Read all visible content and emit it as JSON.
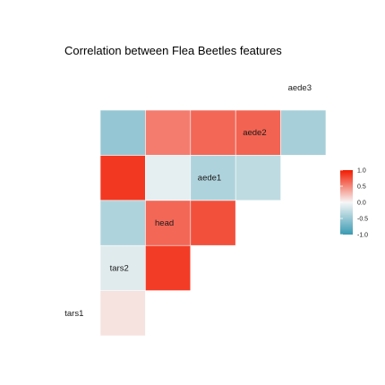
{
  "chart_data": {
    "type": "heatmap",
    "title": "Correlation between Flea Beetles features",
    "variables": [
      "tars1",
      "tars2",
      "head",
      "aede1",
      "aede2",
      "aede3"
    ],
    "values": [
      [
        1.0,
        0.0,
        0.0,
        0.0,
        0.0,
        0.0
      ],
      [
        0.06,
        1.0,
        0.0,
        0.0,
        0.0,
        0.0
      ],
      [
        -0.08,
        0.82,
        1.0,
        0.0,
        0.0,
        0.0
      ],
      [
        -0.32,
        0.6,
        0.72,
        1.0,
        0.0,
        0.0
      ],
      [
        0.84,
        -0.06,
        -0.32,
        -0.24,
        1.0,
        0.0
      ],
      [
        -0.46,
        0.5,
        0.6,
        0.62,
        -0.36,
        1.0
      ]
    ],
    "color_scale": {
      "min": -1.0,
      "max": 1.0,
      "low_color": "#3a9ab2",
      "mid_color": "#f6f6f6",
      "high_color": "#f21a00",
      "ticks": [
        "1.0",
        "0.5",
        "0.0",
        "-0.5",
        "-1.0"
      ]
    },
    "legend_position": "right"
  }
}
